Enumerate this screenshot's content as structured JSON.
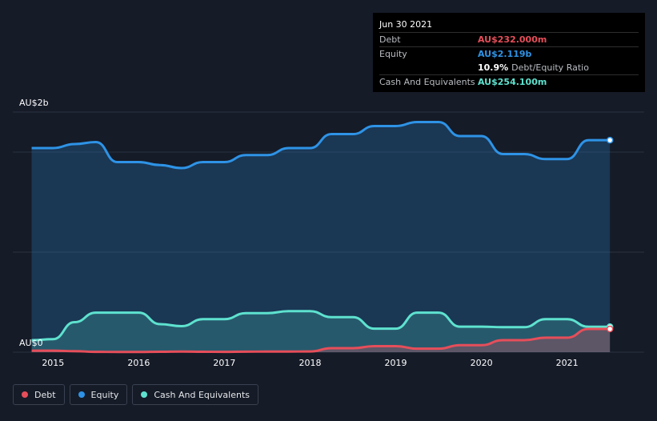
{
  "chart_data": {
    "type": "area",
    "y_axis": {
      "top_label": "AU$2b",
      "bottom_label": "AU$0",
      "ylim": [
        0,
        2.4
      ]
    },
    "x_ticks": [
      "2015",
      "2016",
      "2017",
      "2018",
      "2019",
      "2020",
      "2021"
    ],
    "x_tick_values": [
      2015,
      2016,
      2017,
      2018,
      2019,
      2020,
      2021
    ],
    "xlim": [
      2014.53,
      2021.9
    ],
    "x": [
      2014.75,
      2015.0,
      2015.25,
      2015.5,
      2015.75,
      2016.0,
      2016.25,
      2016.5,
      2016.75,
      2017.0,
      2017.25,
      2017.5,
      2017.75,
      2018.0,
      2018.25,
      2018.5,
      2018.75,
      2019.0,
      2019.25,
      2019.5,
      2019.75,
      2020.0,
      2020.25,
      2020.5,
      2020.75,
      2021.0,
      2021.25,
      2021.5
    ],
    "series": [
      {
        "name": "Debt",
        "color": "#e64e5a",
        "values": [
          0.015,
          0.015,
          0.01,
          0.003,
          0.002,
          0.002,
          0.004,
          0.006,
          0.004,
          0.003,
          0.005,
          0.006,
          0.006,
          0.007,
          0.04,
          0.04,
          0.06,
          0.06,
          0.035,
          0.035,
          0.07,
          0.07,
          0.12,
          0.12,
          0.145,
          0.145,
          0.232,
          0.232
        ]
      },
      {
        "name": "Equity",
        "color": "#2e93e6",
        "values": [
          2.04,
          2.04,
          2.08,
          2.1,
          1.9,
          1.9,
          1.87,
          1.84,
          1.9,
          1.9,
          1.97,
          1.97,
          2.04,
          2.04,
          2.18,
          2.18,
          2.26,
          2.26,
          2.3,
          2.3,
          2.16,
          2.16,
          1.98,
          1.98,
          1.93,
          1.93,
          2.119,
          2.119
        ]
      },
      {
        "name": "Cash And Equivalents",
        "color": "#5ee2cf",
        "values": [
          0.12,
          0.13,
          0.3,
          0.395,
          0.395,
          0.395,
          0.28,
          0.26,
          0.33,
          0.33,
          0.39,
          0.39,
          0.41,
          0.41,
          0.35,
          0.35,
          0.235,
          0.235,
          0.395,
          0.395,
          0.255,
          0.255,
          0.25,
          0.25,
          0.33,
          0.33,
          0.254,
          0.254
        ]
      }
    ],
    "grid": true,
    "legend_position": "bottom-left"
  },
  "tooltip": {
    "date": "Jun 30 2021",
    "debt_label": "Debt",
    "debt_value": "AU$232.000m",
    "equity_label": "Equity",
    "equity_value": "AU$2.119b",
    "ratio_value": "10.9%",
    "ratio_label": "Debt/Equity Ratio",
    "cash_label": "Cash And Equivalents",
    "cash_value": "AU$254.100m"
  },
  "legend": [
    {
      "label": "Debt",
      "color": "#e64e5a"
    },
    {
      "label": "Equity",
      "color": "#2e93e6"
    },
    {
      "label": "Cash And Equivalents",
      "color": "#5ee2cf"
    }
  ]
}
